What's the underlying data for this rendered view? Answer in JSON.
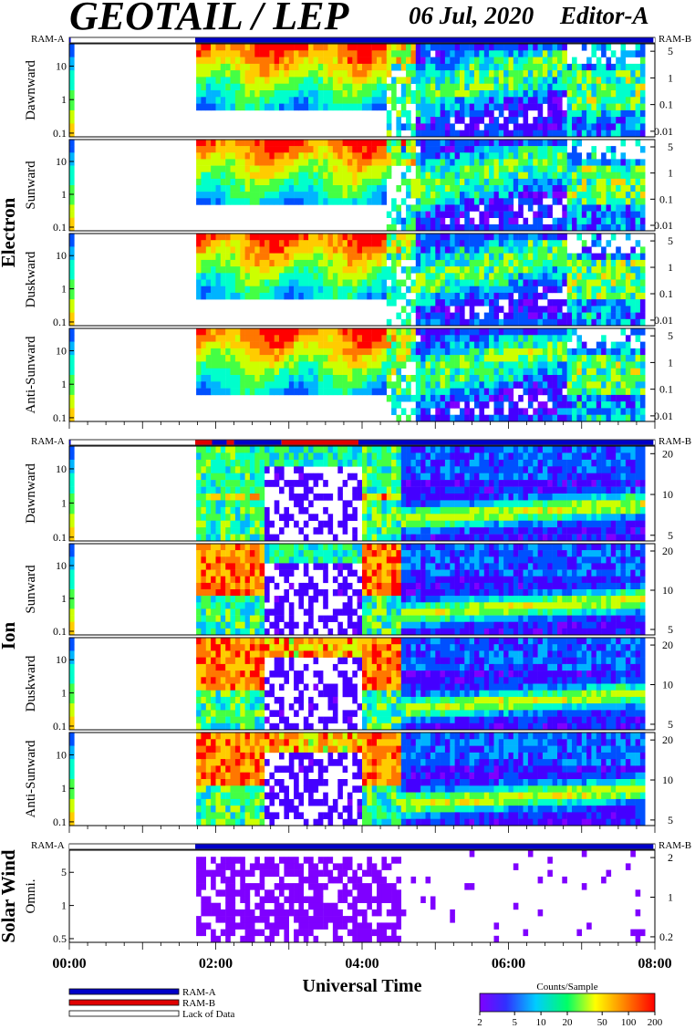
{
  "header": {
    "title": "GEOTAIL / LEP",
    "date": "06 Jul, 2020",
    "editor": "Editor-A"
  },
  "chart_data": {
    "type": "heatmap",
    "x_ticks": [
      "00:00",
      "02:00",
      "04:00",
      "06:00",
      "08:00"
    ],
    "xlabel": "Universal Time",
    "xlim_hours": [
      0,
      8
    ],
    "ram_labels": {
      "left": "RAM-A",
      "right": "RAM-B"
    },
    "groups": [
      {
        "name": "Electron",
        "ram_bar": [
          {
            "start": 0.0,
            "end": 0.02,
            "state": "RAM-A"
          },
          {
            "start": 0.02,
            "end": 1.72,
            "state": "Lack of Data"
          },
          {
            "start": 1.72,
            "end": 7.98,
            "state": "RAM-A"
          },
          {
            "start": 7.98,
            "end": 8.0,
            "state": "Lack of Data"
          }
        ],
        "panels": [
          {
            "label": "Dawnward",
            "left_ticks": [
              "10",
              "1",
              "0.1"
            ],
            "right_ticks": [
              "5",
              "1",
              "0.1",
              "0.01"
            ]
          },
          {
            "label": "Sunward",
            "left_ticks": [
              "10",
              "1",
              "0.1"
            ],
            "right_ticks": [
              "5",
              "1",
              "0.1",
              "0.01"
            ]
          },
          {
            "label": "Duskward",
            "left_ticks": [
              "10",
              "1",
              "0.1"
            ],
            "right_ticks": [
              "5",
              "1",
              "0.1",
              "0.01"
            ]
          },
          {
            "label": "Anti-Sunward",
            "left_ticks": [
              "10",
              "1",
              "0.1"
            ],
            "right_ticks": [
              "5",
              "1",
              "0.1",
              "0.01"
            ]
          }
        ]
      },
      {
        "name": "Ion",
        "ram_bar": [
          {
            "start": 0.0,
            "end": 0.02,
            "state": "RAM-A"
          },
          {
            "start": 0.02,
            "end": 1.72,
            "state": "Lack of Data"
          },
          {
            "start": 1.72,
            "end": 1.95,
            "state": "RAM-B"
          },
          {
            "start": 1.95,
            "end": 2.15,
            "state": "RAM-A"
          },
          {
            "start": 2.15,
            "end": 2.25,
            "state": "RAM-B"
          },
          {
            "start": 2.25,
            "end": 2.9,
            "state": "RAM-A"
          },
          {
            "start": 2.9,
            "end": 3.95,
            "state": "RAM-B"
          },
          {
            "start": 3.95,
            "end": 7.98,
            "state": "RAM-A"
          },
          {
            "start": 7.98,
            "end": 8.0,
            "state": "Lack of Data"
          }
        ],
        "panels": [
          {
            "label": "Dawnward",
            "left_ticks": [
              "10",
              "1",
              "0.1"
            ],
            "right_ticks": [
              "20",
              "10",
              "5"
            ]
          },
          {
            "label": "Sunward",
            "left_ticks": [
              "10",
              "1",
              "0.1"
            ],
            "right_ticks": [
              "20",
              "10",
              "5"
            ]
          },
          {
            "label": "Duskward",
            "left_ticks": [
              "10",
              "1",
              "0.1"
            ],
            "right_ticks": [
              "20",
              "10",
              "5"
            ]
          },
          {
            "label": "Anti-Sunward",
            "left_ticks": [
              "10",
              "1",
              "0.1"
            ],
            "right_ticks": [
              "20",
              "10",
              "5"
            ]
          }
        ]
      },
      {
        "name": "Solar Wind",
        "ram_bar": [
          {
            "start": 0.0,
            "end": 1.72,
            "state": "Lack of Data"
          },
          {
            "start": 1.72,
            "end": 7.98,
            "state": "RAM-A"
          },
          {
            "start": 7.98,
            "end": 8.0,
            "state": "Lack of Data"
          }
        ],
        "panels": [
          {
            "label": "Omni.",
            "left_ticks": [
              "5",
              "1",
              "0.5"
            ],
            "right_ticks": [
              "2",
              "1",
              "0.2"
            ]
          }
        ]
      }
    ],
    "legend": [
      {
        "label": "RAM-A",
        "color": "#0000c8"
      },
      {
        "label": "RAM-B",
        "color": "#e00000"
      },
      {
        "label": "Lack of Data",
        "color": "#ffffff"
      }
    ],
    "colorbar": {
      "title": "Counts/Sample",
      "ticks": [
        "2",
        "5",
        "10",
        "20",
        "50",
        "100",
        "200"
      ],
      "values": [
        2,
        5,
        10,
        20,
        50,
        100,
        200
      ]
    }
  }
}
